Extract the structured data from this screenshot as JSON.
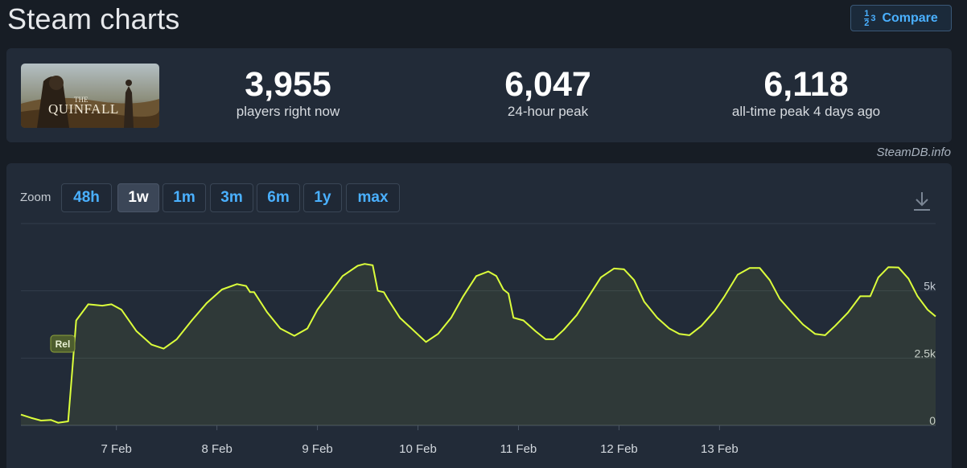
{
  "header": {
    "title": "Steam charts",
    "compare_label": "Compare",
    "compare_icon": "fraction-icon"
  },
  "stats": {
    "game_image_text_1": "THE",
    "game_image_text_2": "QUINFALL",
    "current": {
      "value": "3,955",
      "label": "players right now"
    },
    "peak24": {
      "value": "6,047",
      "label": "24-hour peak"
    },
    "alltime": {
      "value": "6,118",
      "label": "all-time peak 4 days ago"
    }
  },
  "source": "SteamDB.info",
  "zoom": {
    "label": "Zoom",
    "options": [
      "48h",
      "1w",
      "1m",
      "3m",
      "6m",
      "1y",
      "max"
    ],
    "selected": "1w"
  },
  "colors": {
    "line": "#dcff3b",
    "accent": "#4ab0ff",
    "background": "#171d25",
    "panel": "#222b38"
  },
  "chart_data": {
    "type": "area",
    "series": [
      {
        "values": [
          [
            6.05,
            400
          ],
          [
            6.15,
            280
          ],
          [
            6.25,
            180
          ],
          [
            6.35,
            200
          ],
          [
            6.42,
            100
          ],
          [
            6.52,
            150
          ],
          [
            6.56,
            2000
          ],
          [
            6.6,
            3900
          ],
          [
            6.72,
            4500
          ],
          [
            6.86,
            4450
          ],
          [
            6.95,
            4500
          ],
          [
            7.05,
            4300
          ],
          [
            7.2,
            3500
          ],
          [
            7.35,
            3000
          ],
          [
            7.47,
            2850
          ],
          [
            7.6,
            3200
          ],
          [
            7.75,
            3900
          ],
          [
            7.9,
            4550
          ],
          [
            8.05,
            5050
          ],
          [
            8.2,
            5250
          ],
          [
            8.29,
            5180
          ],
          [
            8.33,
            4950
          ],
          [
            8.37,
            4950
          ],
          [
            8.5,
            4200
          ],
          [
            8.63,
            3600
          ],
          [
            8.77,
            3330
          ],
          [
            8.9,
            3600
          ],
          [
            9.0,
            4300
          ],
          [
            9.12,
            4900
          ],
          [
            9.25,
            5550
          ],
          [
            9.4,
            5930
          ],
          [
            9.47,
            6000
          ],
          [
            9.55,
            5950
          ],
          [
            9.6,
            5000
          ],
          [
            9.66,
            4950
          ],
          [
            9.7,
            4700
          ],
          [
            9.82,
            4000
          ],
          [
            9.95,
            3550
          ],
          [
            10.08,
            3100
          ],
          [
            10.2,
            3400
          ],
          [
            10.33,
            4000
          ],
          [
            10.45,
            4800
          ],
          [
            10.58,
            5550
          ],
          [
            10.7,
            5720
          ],
          [
            10.78,
            5550
          ],
          [
            10.85,
            5050
          ],
          [
            10.9,
            4900
          ],
          [
            10.95,
            4000
          ],
          [
            11.05,
            3900
          ],
          [
            11.17,
            3500
          ],
          [
            11.27,
            3200
          ],
          [
            11.35,
            3200
          ],
          [
            11.45,
            3550
          ],
          [
            11.58,
            4100
          ],
          [
            11.7,
            4800
          ],
          [
            11.82,
            5500
          ],
          [
            11.95,
            5830
          ],
          [
            12.05,
            5800
          ],
          [
            12.15,
            5400
          ],
          [
            12.25,
            4600
          ],
          [
            12.38,
            4000
          ],
          [
            12.5,
            3600
          ],
          [
            12.6,
            3400
          ],
          [
            12.7,
            3350
          ],
          [
            12.82,
            3700
          ],
          [
            12.95,
            4250
          ],
          [
            13.05,
            4800
          ],
          [
            13.18,
            5600
          ],
          [
            13.3,
            5850
          ],
          [
            13.4,
            5850
          ],
          [
            13.5,
            5400
          ],
          [
            13.6,
            4700
          ],
          [
            13.73,
            4150
          ],
          [
            13.83,
            3750
          ],
          [
            13.95,
            3400
          ],
          [
            14.05,
            3350
          ],
          [
            14.15,
            3700
          ],
          [
            14.28,
            4200
          ],
          [
            14.4,
            4800
          ],
          [
            14.5,
            4800
          ],
          [
            14.58,
            5500
          ],
          [
            14.68,
            5880
          ],
          [
            14.78,
            5870
          ],
          [
            14.88,
            5450
          ],
          [
            14.97,
            4800
          ],
          [
            15.07,
            4300
          ],
          [
            15.15,
            4050
          ]
        ]
      }
    ],
    "x_ticks": [
      "7 Feb",
      "8 Feb",
      "9 Feb",
      "10 Feb",
      "11 Feb",
      "12 Feb",
      "13 Feb"
    ],
    "y_ticks": [
      "0",
      "2.5k",
      "5k"
    ],
    "ylim": [
      0,
      7500
    ],
    "xlim": [
      6.05,
      15.15
    ],
    "annotations": [
      {
        "text": "Rel",
        "x": 6.49
      }
    ],
    "grid": true
  }
}
